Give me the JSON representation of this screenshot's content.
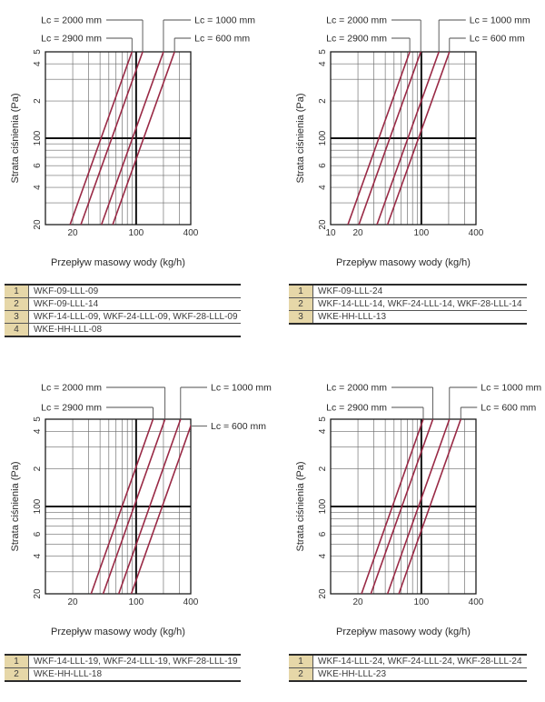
{
  "page": {
    "background": "#ffffff"
  },
  "colors": {
    "series_line": "#992945",
    "grid_line": "#6b6b6b",
    "plot_border": "#1c1c1c",
    "reference_line": "#111111",
    "leader_line": "#4d4d4d",
    "text": "#333333",
    "table_number_bg": "#e6d7a8",
    "table_border": "#2b2b2b"
  },
  "axis": {
    "x_title": "Przepływ masowy wody (kg/h)",
    "y_title": "Strata ciśnienia (Pa)"
  },
  "chart_data": [
    {
      "position": "top-left",
      "type": "line",
      "scale": "log-log",
      "xlabel": "Przepływ masowy wody (kg/h)",
      "ylabel": "Strata ciśnienia (Pa)",
      "xlim": [
        10,
        400
      ],
      "ylim": [
        20,
        500
      ],
      "reference_lines": {
        "x": 100,
        "y": 100
      },
      "x_ticks": [
        {
          "v": 20,
          "label": "20"
        },
        {
          "v": 100,
          "label": "100"
        },
        {
          "v": 400,
          "label": "400"
        }
      ],
      "y_ticks": [
        {
          "v": 500,
          "label": "5"
        },
        {
          "v": 400,
          "label": "4"
        },
        {
          "v": 200,
          "label": "2"
        },
        {
          "v": 100,
          "label": "100"
        },
        {
          "v": 60,
          "label": "6"
        },
        {
          "v": 40,
          "label": "4"
        },
        {
          "v": 20,
          "label": "20"
        }
      ],
      "series": [
        {
          "lc_mm": 2900,
          "name": "Lc = 2900 mm",
          "flow_at_20Pa": 18.7,
          "flow_at_100Pa": 41,
          "flow_at_500Pa": 90
        },
        {
          "lc_mm": 2000,
          "name": "Lc = 2000 mm",
          "flow_at_20Pa": 24.6,
          "flow_at_100Pa": 54,
          "flow_at_500Pa": 118
        },
        {
          "lc_mm": 1000,
          "name": "Lc = 1000 mm",
          "flow_at_20Pa": 41.5,
          "flow_at_100Pa": 91,
          "flow_at_500Pa": 200
        },
        {
          "lc_mm": 600,
          "name": "Lc = 600 mm",
          "flow_at_20Pa": 55.2,
          "flow_at_100Pa": 121,
          "flow_at_500Pa": 265
        }
      ],
      "legend": {
        "left": [
          "Lc = 2000 mm",
          "Lc = 2900 mm"
        ],
        "right": [
          "Lc = 1000 mm",
          "Lc = 600 mm"
        ]
      },
      "table": {
        "rows": [
          {
            "no": "1",
            "models": "WKF-09-LLL-09"
          },
          {
            "no": "2",
            "models": "WKF-09-LLL-14"
          },
          {
            "no": "3",
            "models": "WKF-14-LLL-09, WKF-24-LLL-09, WKF-28-LLL-09"
          },
          {
            "no": "4",
            "models": "WKE-HH-LLL-08"
          }
        ]
      }
    },
    {
      "position": "top-right",
      "type": "line",
      "scale": "log-log",
      "xlabel": "Przepływ masowy wody (kg/h)",
      "ylabel": "Strata ciśnienia (Pa)",
      "xlim": [
        10,
        400
      ],
      "ylim": [
        20,
        500
      ],
      "reference_lines": {
        "x": 100,
        "y": 100
      },
      "x_ticks": [
        {
          "v": 10,
          "label": "10"
        },
        {
          "v": 20,
          "label": "20"
        },
        {
          "v": 100,
          "label": "100"
        },
        {
          "v": 400,
          "label": "400"
        }
      ],
      "y_ticks": [
        {
          "v": 500,
          "label": "5"
        },
        {
          "v": 400,
          "label": "4"
        },
        {
          "v": 200,
          "label": "2"
        },
        {
          "v": 100,
          "label": "100"
        },
        {
          "v": 60,
          "label": "6"
        },
        {
          "v": 40,
          "label": "4"
        },
        {
          "v": 20,
          "label": "20"
        }
      ],
      "series": [
        {
          "lc_mm": 2900,
          "name": "Lc = 2900 mm",
          "flow_at_20Pa": 15.5,
          "flow_at_100Pa": 34,
          "flow_at_500Pa": 74.5
        },
        {
          "lc_mm": 2000,
          "name": "Lc = 2000 mm",
          "flow_at_20Pa": 20.5,
          "flow_at_100Pa": 45,
          "flow_at_500Pa": 98.5
        },
        {
          "lc_mm": 1000,
          "name": "Lc = 1000 mm",
          "flow_at_20Pa": 32.4,
          "flow_at_100Pa": 71,
          "flow_at_500Pa": 156
        },
        {
          "lc_mm": 600,
          "name": "Lc = 600 mm",
          "flow_at_20Pa": 42.4,
          "flow_at_100Pa": 93,
          "flow_at_500Pa": 204
        }
      ],
      "legend": {
        "left": [
          "Lc = 2000 mm",
          "Lc = 2900 mm"
        ],
        "right": [
          "Lc = 1000 mm",
          "Lc = 600 mm"
        ]
      },
      "table": {
        "rows": [
          {
            "no": "1",
            "models": "WKF-09-LLL-24"
          },
          {
            "no": "2",
            "models": "WKF-14-LLL-14, WKF-24-LLL-14, WKF-28-LLL-14"
          },
          {
            "no": "3",
            "models": "WKE-HH-LLL-13"
          }
        ]
      }
    },
    {
      "position": "bottom-left",
      "type": "line",
      "scale": "log-log",
      "xlabel": "Przepływ masowy wody (kg/h)",
      "ylabel": "Strata ciśnienia (Pa)",
      "xlim": [
        10,
        400
      ],
      "ylim": [
        20,
        500
      ],
      "reference_lines": {
        "x": 100,
        "y": 100
      },
      "x_ticks": [
        {
          "v": 20,
          "label": "20"
        },
        {
          "v": 100,
          "label": "100"
        },
        {
          "v": 400,
          "label": "400"
        }
      ],
      "y_ticks": [
        {
          "v": 500,
          "label": "5"
        },
        {
          "v": 400,
          "label": "4"
        },
        {
          "v": 200,
          "label": "2"
        },
        {
          "v": 100,
          "label": "100"
        },
        {
          "v": 60,
          "label": "6"
        },
        {
          "v": 40,
          "label": "4"
        },
        {
          "v": 20,
          "label": "20"
        }
      ],
      "series": [
        {
          "lc_mm": 2900,
          "name": "Lc = 2900 mm",
          "flow_at_20Pa": 31.9,
          "flow_at_100Pa": 70,
          "flow_at_500Pa": 153.5
        },
        {
          "lc_mm": 2000,
          "name": "Lc = 2000 mm",
          "flow_at_20Pa": 43.3,
          "flow_at_100Pa": 95,
          "flow_at_500Pa": 208
        },
        {
          "lc_mm": 1000,
          "name": "Lc = 1000 mm",
          "flow_at_20Pa": 64.3,
          "flow_at_100Pa": 141,
          "flow_at_500Pa": 309
        },
        {
          "lc_mm": 600,
          "name": "Lc = 600 mm",
          "flow_at_20Pa": 88.5,
          "flow_at_100Pa": 194,
          "flow_at_500Pa": 425
        }
      ],
      "legend": {
        "left": [
          "Lc = 2000 mm",
          "Lc = 2900 mm"
        ],
        "right": [
          "Lc = 1000 mm",
          "Lc = 600 mm"
        ]
      },
      "table": {
        "rows": [
          {
            "no": "1",
            "models": "WKF-14-LLL-19, WKF-24-LLL-19, WKF-28-LLL-19"
          },
          {
            "no": "2",
            "models": "WKE-HH-LLL-18"
          }
        ]
      }
    },
    {
      "position": "bottom-right",
      "type": "line",
      "scale": "log-log",
      "xlabel": "Przepływ masowy wody (kg/h)",
      "ylabel": "Strata ciśnienia (Pa)",
      "xlim": [
        10,
        400
      ],
      "ylim": [
        20,
        500
      ],
      "reference_lines": {
        "x": 100,
        "y": 100
      },
      "x_ticks": [
        {
          "v": 20,
          "label": "20"
        },
        {
          "v": 100,
          "label": "100"
        },
        {
          "v": 400,
          "label": "400"
        }
      ],
      "y_ticks": [
        {
          "v": 500,
          "label": "5"
        },
        {
          "v": 400,
          "label": "4"
        },
        {
          "v": 200,
          "label": "2"
        },
        {
          "v": 100,
          "label": "100"
        },
        {
          "v": 60,
          "label": "6"
        },
        {
          "v": 40,
          "label": "4"
        },
        {
          "v": 20,
          "label": "20"
        }
      ],
      "series": [
        {
          "lc_mm": 2900,
          "name": "Lc = 2900 mm",
          "flow_at_20Pa": 21.9,
          "flow_at_100Pa": 48,
          "flow_at_500Pa": 105
        },
        {
          "lc_mm": 2000,
          "name": "Lc = 2000 mm",
          "flow_at_20Pa": 27.8,
          "flow_at_100Pa": 61,
          "flow_at_500Pa": 134
        },
        {
          "lc_mm": 1000,
          "name": "Lc = 1000 mm",
          "flow_at_20Pa": 42.4,
          "flow_at_100Pa": 93,
          "flow_at_500Pa": 204
        },
        {
          "lc_mm": 600,
          "name": "Lc = 600 mm",
          "flow_at_20Pa": 56.5,
          "flow_at_100Pa": 124,
          "flow_at_500Pa": 272
        }
      ],
      "legend": {
        "left": [
          "Lc = 2000 mm",
          "Lc = 2900 mm"
        ],
        "right": [
          "Lc = 1000 mm",
          "Lc = 600 mm"
        ]
      },
      "table": {
        "rows": [
          {
            "no": "1",
            "models": "WKF-14-LLL-24, WKF-24-LLL-24, WKF-28-LLL-24"
          },
          {
            "no": "2",
            "models": "WKE-HH-LLL-23"
          }
        ]
      }
    }
  ]
}
